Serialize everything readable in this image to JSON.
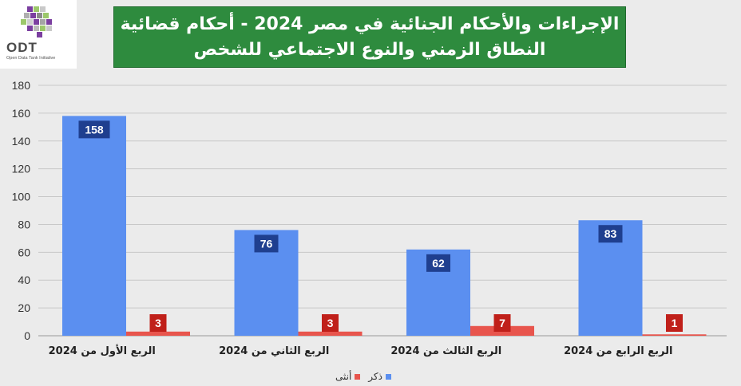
{
  "logo": {
    "text": "ODT",
    "subtitle": "Open Data Tank Initiative"
  },
  "chart_data": {
    "type": "bar",
    "title": "الإجراءات والأحكام الجنائية في مصر 2024 - أحكام قضائية النطاق الزمني والنوع الاجتماعي للشخص",
    "title_lines": [
      "الإجراءات والأحكام الجنائية في مصر 2024 - أحكام قضائية",
      "النطاق الزمني والنوع الاجتماعي للشخص"
    ],
    "categories": [
      "الربع الأول من 2024",
      "الربع الثاني من 2024",
      "الربع الثالث من 2024",
      "الربع الرابع من 2024"
    ],
    "series": [
      {
        "name": "ذكر",
        "color": "#5b8ff0",
        "label_bg": "#1f3f8f",
        "values": [
          158,
          76,
          62,
          83
        ]
      },
      {
        "name": "أنثى",
        "color": "#e8554d",
        "label_bg": "#c0201a",
        "values": [
          3,
          3,
          7,
          1
        ]
      }
    ],
    "ylim": [
      0,
      180
    ],
    "yticks": [
      0,
      20,
      40,
      60,
      80,
      100,
      120,
      140,
      160,
      180
    ],
    "grid": true,
    "legend": "bottom-center",
    "xlabel": "",
    "ylabel": ""
  }
}
